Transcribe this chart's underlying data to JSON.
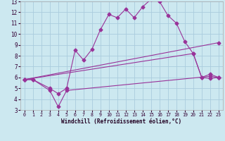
{
  "background_color": "#cce8f0",
  "grid_color": "#aaccdd",
  "line_color": "#993399",
  "xlim": [
    -0.5,
    23.5
  ],
  "ylim": [
    3,
    13
  ],
  "xticks": [
    0,
    1,
    2,
    3,
    4,
    5,
    6,
    7,
    8,
    9,
    10,
    11,
    12,
    13,
    14,
    15,
    16,
    17,
    18,
    19,
    20,
    21,
    22,
    23
  ],
  "yticks": [
    3,
    4,
    5,
    6,
    7,
    8,
    9,
    10,
    11,
    12,
    13
  ],
  "xlabel": "Windchill (Refroidissement éolien,°C)",
  "line1_x": [
    0,
    1,
    3,
    4,
    5,
    6,
    7,
    8,
    9,
    10,
    11,
    12,
    13,
    14,
    15,
    16,
    17,
    18,
    19,
    20,
    21,
    22,
    23
  ],
  "line1_y": [
    5.8,
    5.8,
    5.0,
    4.5,
    5.0,
    8.5,
    7.6,
    8.6,
    10.4,
    11.8,
    11.5,
    12.3,
    11.5,
    12.5,
    13.2,
    13.0,
    11.7,
    11.0,
    9.3,
    8.2,
    6.0,
    6.3,
    6.0
  ],
  "line2_x": [
    0,
    1,
    3,
    4,
    5,
    22,
    23
  ],
  "line2_y": [
    5.8,
    5.8,
    4.8,
    3.3,
    4.8,
    6.1,
    6.0
  ],
  "line3_x": [
    0,
    23
  ],
  "line3_y": [
    5.8,
    9.2
  ],
  "line4_x": [
    0,
    20,
    21,
    22,
    23
  ],
  "line4_y": [
    5.8,
    8.2,
    6.0,
    5.9,
    6.0
  ]
}
